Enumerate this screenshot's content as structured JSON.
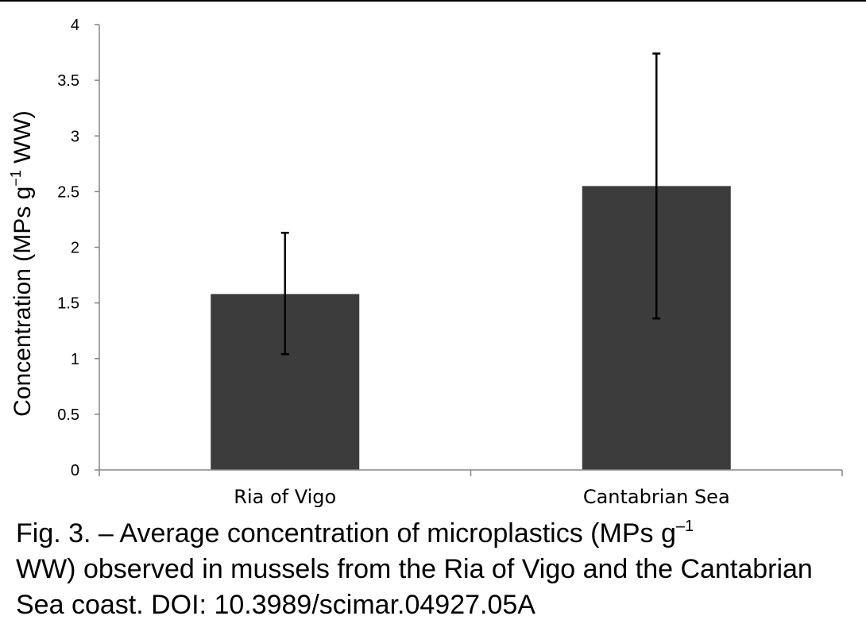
{
  "chart_data": {
    "type": "bar",
    "categories": [
      "Ria of Vigo",
      "Cantabrian Sea"
    ],
    "values": [
      1.58,
      2.55
    ],
    "error_low": [
      1.04,
      1.36
    ],
    "error_high": [
      2.13,
      3.74
    ],
    "ylabel": {
      "main": "Concentration (MPs g",
      "sup": "−1",
      "tail": " WW)"
    },
    "ylim": [
      0,
      4
    ],
    "yticks": [
      "0",
      "0.5",
      "1",
      "1.5",
      "2",
      "2.5",
      "3",
      "3.5",
      "4"
    ],
    "grid": false,
    "legend": false,
    "bar_color": "#3c3c3c"
  },
  "caption": {
    "line1_start": "Fig. 3. – Average concentration of microplastics (MPs g",
    "line1_sup": "–1",
    "rest": "WW) observed in mussels from the Ria of Vigo and the Cantabrian Sea coast. DOI: 10.3989/scimar.04927.05A"
  }
}
